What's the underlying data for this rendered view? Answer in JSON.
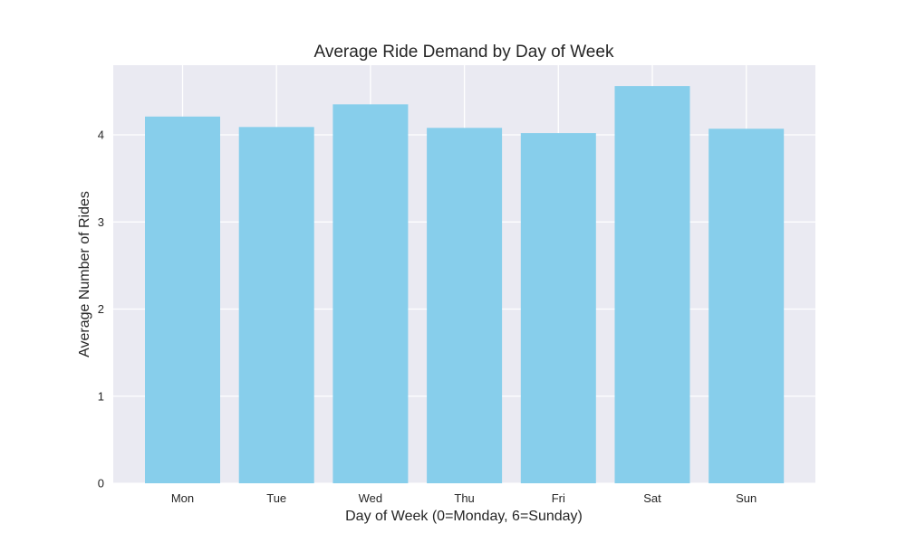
{
  "chart_data": {
    "type": "bar",
    "title": "Average Ride Demand by Day of Week",
    "xlabel": "Day of Week (0=Monday, 6=Sunday)",
    "ylabel": "Average Number of Rides",
    "categories": [
      "Mon",
      "Tue",
      "Wed",
      "Thu",
      "Fri",
      "Sat",
      "Sun"
    ],
    "values": [
      4.21,
      4.09,
      4.35,
      4.08,
      4.02,
      4.56,
      4.07
    ],
    "ylim": [
      0,
      4.8
    ],
    "yticks": [
      0,
      1,
      2,
      3,
      4
    ],
    "grid": true,
    "bar_color": "#87ceeb",
    "background_color": "#eaeaf2"
  }
}
